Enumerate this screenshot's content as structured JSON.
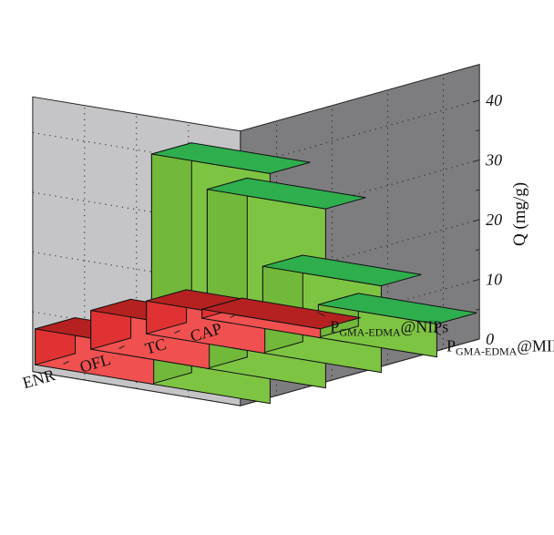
{
  "chart_data": {
    "type": "bar",
    "categories": [
      "ENR",
      "OFL",
      "TC",
      "CAP"
    ],
    "series": [
      {
        "name": "P<sub>GMA-EDMA</sub>@MIPs",
        "name_main": "P",
        "name_sub": "GMA-EDMA",
        "name_suffix": "@MIPs",
        "values": [
          38.5,
          30.0,
          14.5,
          5.5
        ]
      },
      {
        "name": "P<sub>GMA-EDMA</sub>@NIPs",
        "name_main": "P",
        "name_sub": "GMA-EDMA",
        "name_suffix": "@NIPs",
        "values": [
          6.0,
          6.5,
          5.5,
          1.5
        ]
      }
    ],
    "zlabel": "Q (mg/g)",
    "zlim": [
      0,
      40
    ],
    "zticks": [
      "0",
      "10",
      "20",
      "30",
      "40"
    ],
    "grid": true,
    "colors": {
      "mips_top": "#2fae4e",
      "mips_front": "#7ec443",
      "mips_side": "#72b83a",
      "nips_top": "#b52121",
      "nips_front": "#f05050",
      "nips_side": "#e03232",
      "floor": "#f2f01e",
      "back_wall": "#7d7d7f",
      "left_wall": "#c5c5c7"
    }
  }
}
